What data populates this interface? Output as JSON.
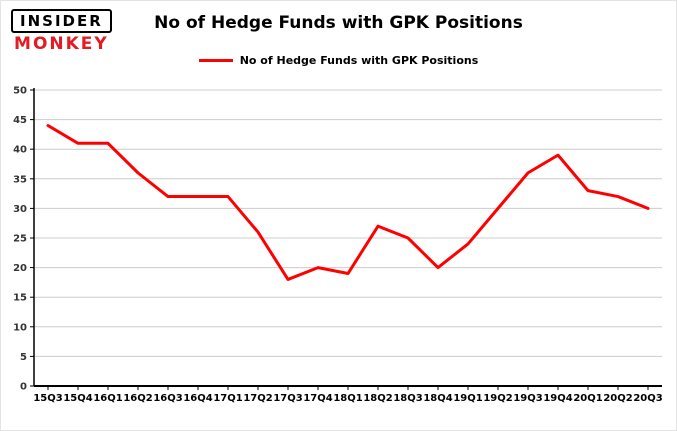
{
  "logo": {
    "line1": "INSIDER",
    "line2": "MONKEY",
    "monkey_color": "#e31b23"
  },
  "title": "No of Hedge Funds with GPK Positions",
  "legend": {
    "label": "No of Hedge Funds with GPK Positions",
    "color": "#ff0000"
  },
  "chart_data": {
    "type": "line",
    "title": "No of Hedge Funds with GPK Positions",
    "categories": [
      "15Q3",
      "15Q4",
      "16Q1",
      "16Q2",
      "16Q3",
      "16Q4",
      "17Q1",
      "17Q2",
      "17Q3",
      "17Q4",
      "18Q1",
      "18Q2",
      "18Q3",
      "18Q4",
      "19Q1",
      "19Q2",
      "19Q3",
      "19Q4",
      "20Q1",
      "20Q2",
      "20Q3"
    ],
    "values": [
      44,
      41,
      41,
      36,
      32,
      32,
      32,
      26,
      18,
      20,
      19,
      27,
      25,
      20,
      24,
      30,
      36,
      39,
      33,
      32,
      30
    ],
    "xlabel": "",
    "ylabel": "",
    "ylim": [
      0,
      50
    ],
    "yticks": [
      0,
      5,
      10,
      15,
      20,
      25,
      30,
      35,
      40,
      45,
      50
    ],
    "grid": true,
    "legend_position": "top",
    "line_color": "#ff0000",
    "grid_color": "#cccccc",
    "axis_color": "#000000",
    "tick_label_color": "#333333"
  }
}
